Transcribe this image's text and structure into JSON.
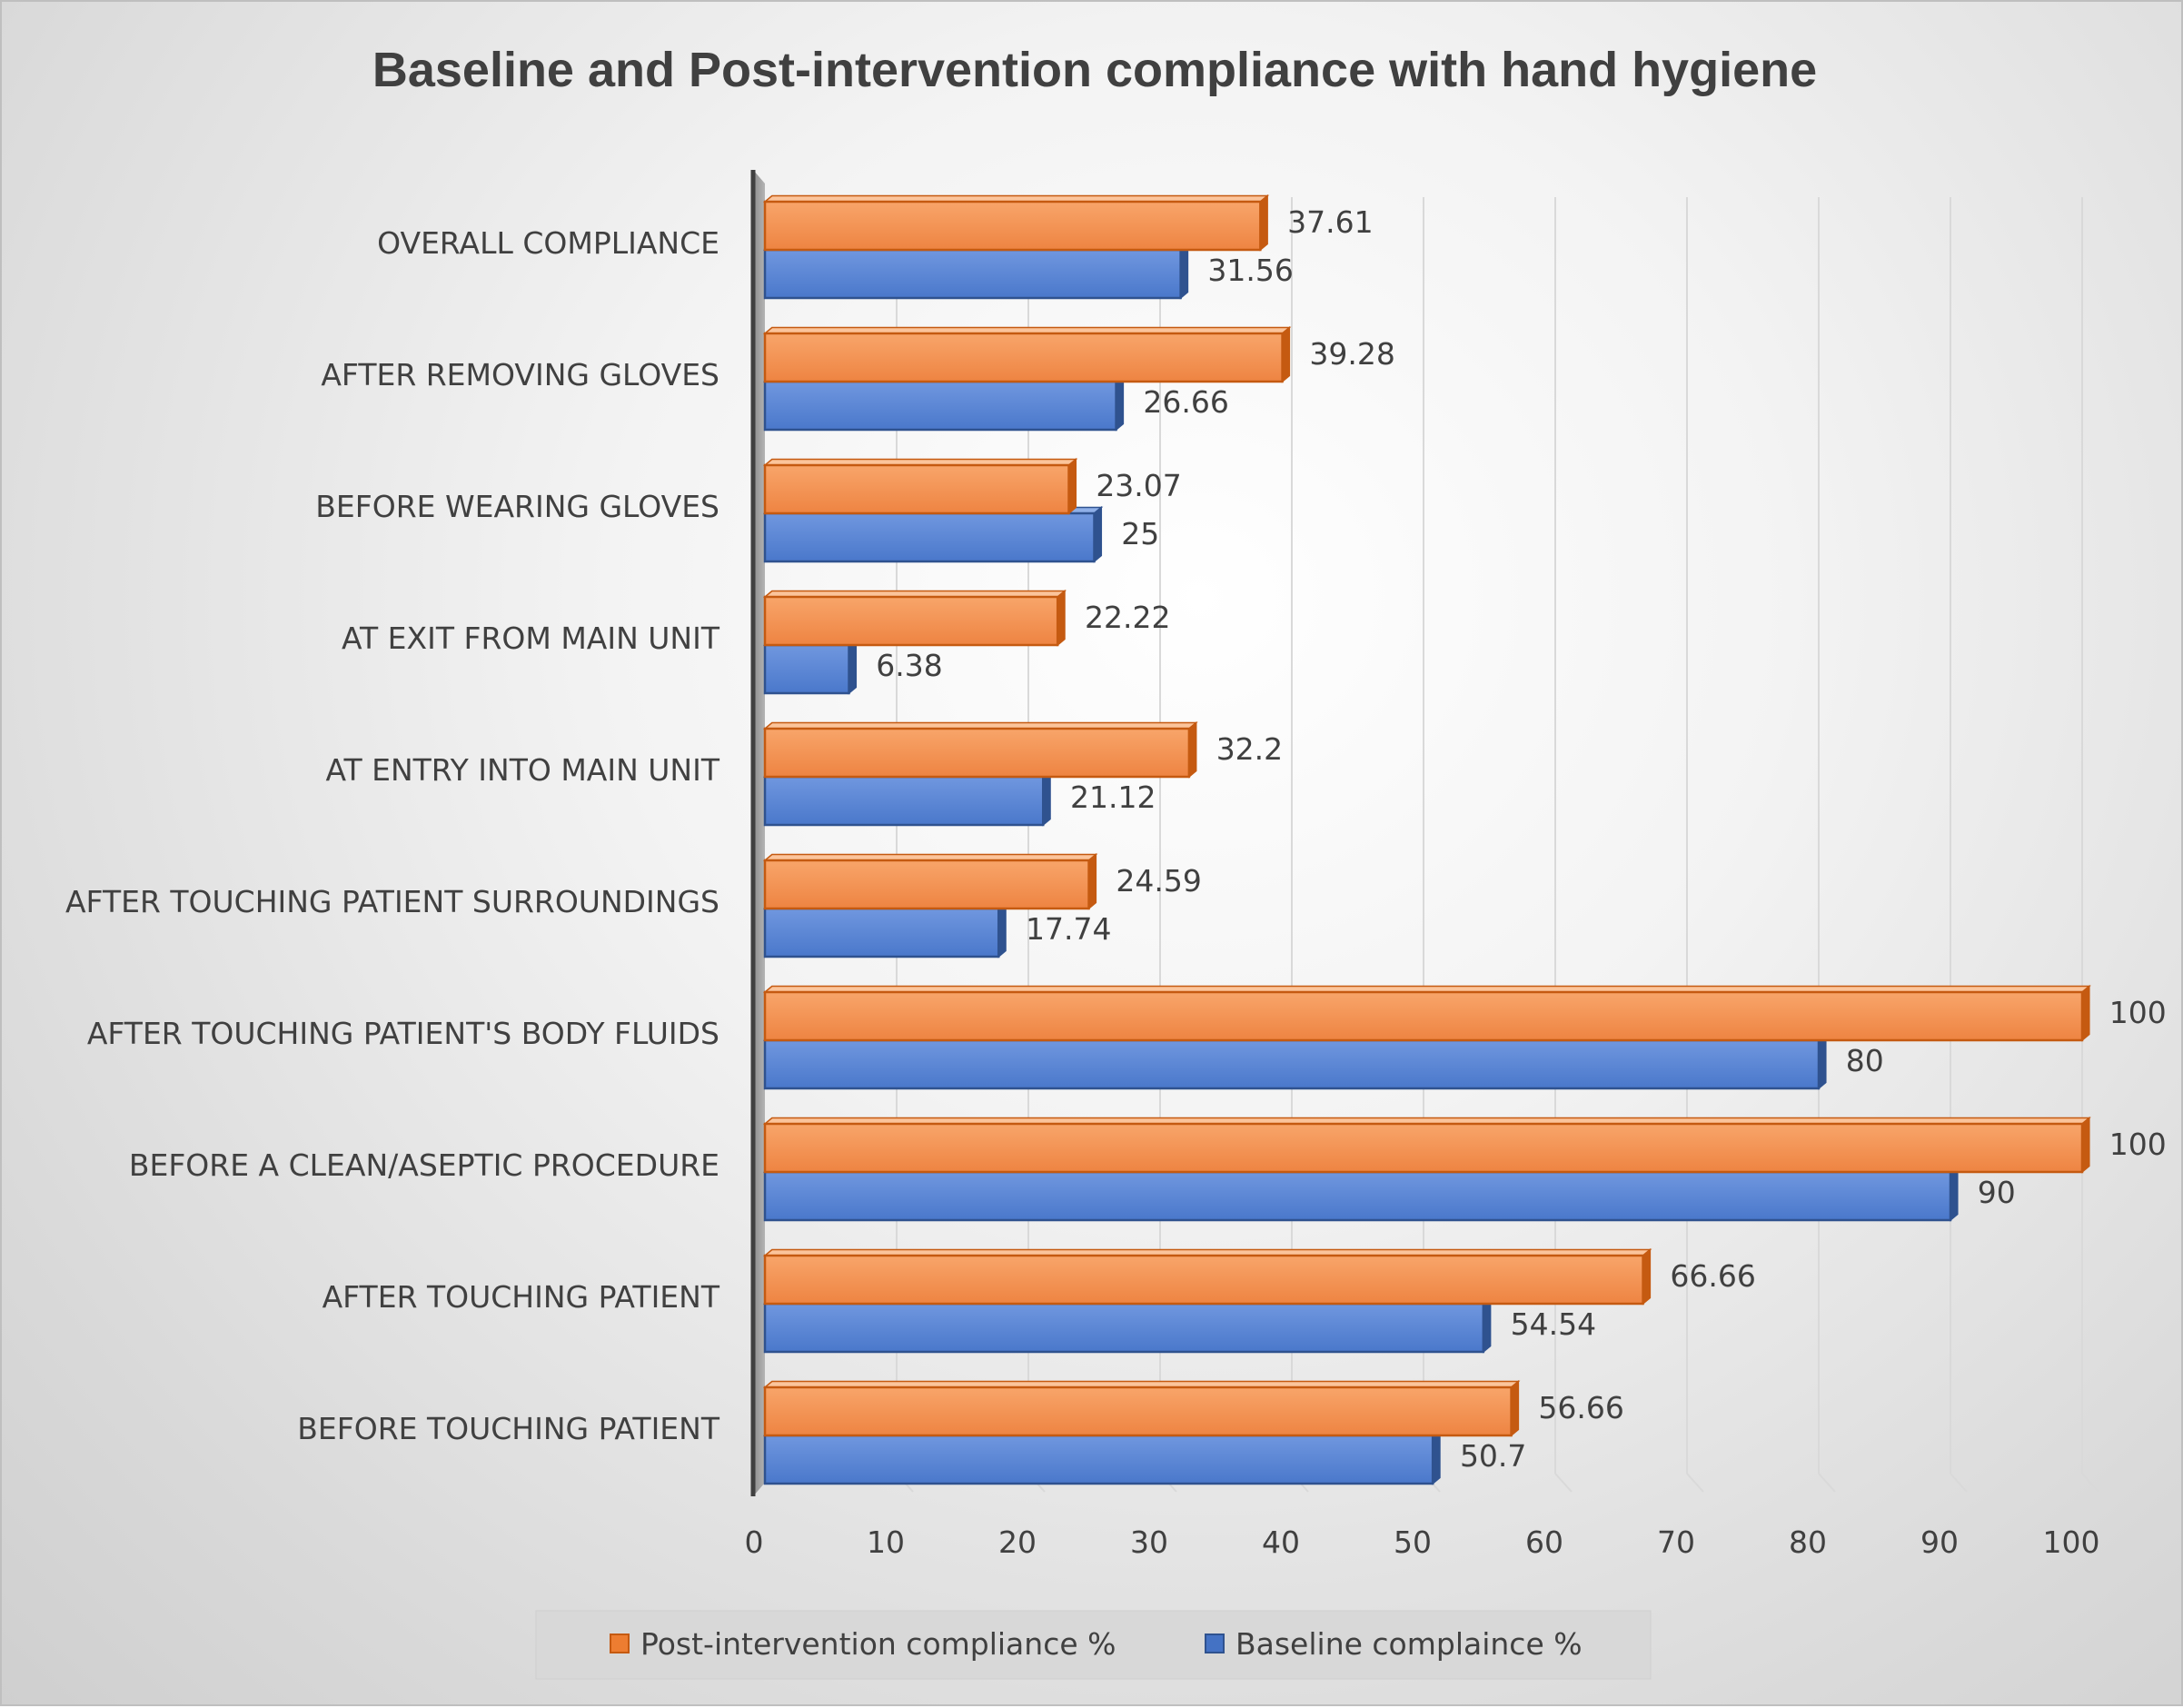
{
  "chart_data": {
    "type": "bar",
    "orientation": "horizontal",
    "title": "Baseline and Post-intervention compliance with hand hygiene",
    "xlabel": "",
    "ylabel": "",
    "xlim": [
      0,
      100
    ],
    "ticks": [
      "0",
      "10",
      "20",
      "30",
      "40",
      "50",
      "60",
      "70",
      "80",
      "90",
      "100"
    ],
    "grid": true,
    "legend_position": "bottom",
    "categories": [
      "OVERALL COMPLIANCE",
      "AFTER REMOVING GLOVES",
      "BEFORE WEARING GLOVES",
      "AT EXIT FROM MAIN UNIT",
      "AT ENTRY INTO MAIN UNIT",
      "AFTER TOUCHING PATIENT SURROUNDINGS",
      "AFTER TOUCHING PATIENT'S BODY FLUIDS",
      "BEFORE A CLEAN/ASEPTIC PROCEDURE",
      "AFTER TOUCHING PATIENT",
      "BEFORE TOUCHING PATIENT"
    ],
    "series": [
      {
        "name": "Post-intervention compliance %",
        "color": "#ED7D31",
        "values": [
          37.61,
          39.28,
          23.07,
          22.22,
          32.2,
          24.59,
          100,
          100,
          66.66,
          56.66
        ],
        "labels": [
          "37.61",
          "39.28",
          "23.07",
          "22.22",
          "32.2",
          "24.59",
          "100",
          "100",
          "66.66",
          "56.66"
        ]
      },
      {
        "name": "Baseline complaince %",
        "color": "#4472C4",
        "values": [
          31.56,
          26.66,
          25,
          6.38,
          21.12,
          17.74,
          80,
          90,
          54.54,
          50.7
        ],
        "labels": [
          "31.56",
          "26.66",
          "25",
          "6.38",
          "21.12",
          "17.74",
          "80",
          "90",
          "54.54",
          "50.7"
        ]
      }
    ]
  }
}
